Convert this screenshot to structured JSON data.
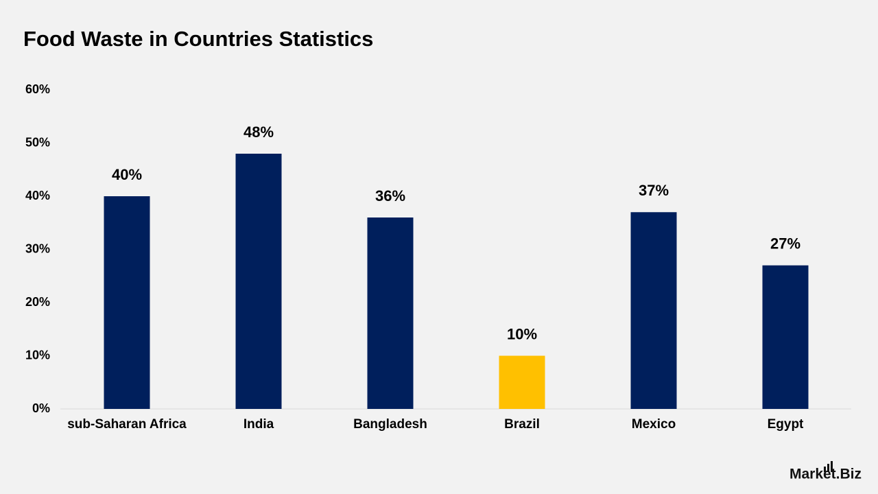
{
  "chart_data": {
    "type": "bar",
    "title": "Food Waste in Countries Statistics",
    "categories": [
      "sub-Saharan Africa",
      "India",
      "Bangladesh",
      "Brazil",
      "Mexico",
      "Egypt"
    ],
    "values": [
      40,
      48,
      36,
      10,
      37,
      27
    ],
    "value_labels": [
      "40%",
      "48%",
      "36%",
      "10%",
      "37%",
      "27%"
    ],
    "colors": [
      "#001f5c",
      "#001f5c",
      "#001f5c",
      "#ffc000",
      "#001f5c",
      "#001f5c"
    ],
    "ylim": [
      0,
      60
    ],
    "yticks": [
      {
        "value": 0,
        "label": "0%"
      },
      {
        "value": 10,
        "label": "10%"
      },
      {
        "value": 20,
        "label": "20%"
      },
      {
        "value": 30,
        "label": "30%"
      },
      {
        "value": 40,
        "label": "40%"
      },
      {
        "value": 50,
        "label": "50%"
      },
      {
        "value": 60,
        "label": "60%"
      }
    ],
    "grid": false,
    "brand": "Market.Biz"
  }
}
